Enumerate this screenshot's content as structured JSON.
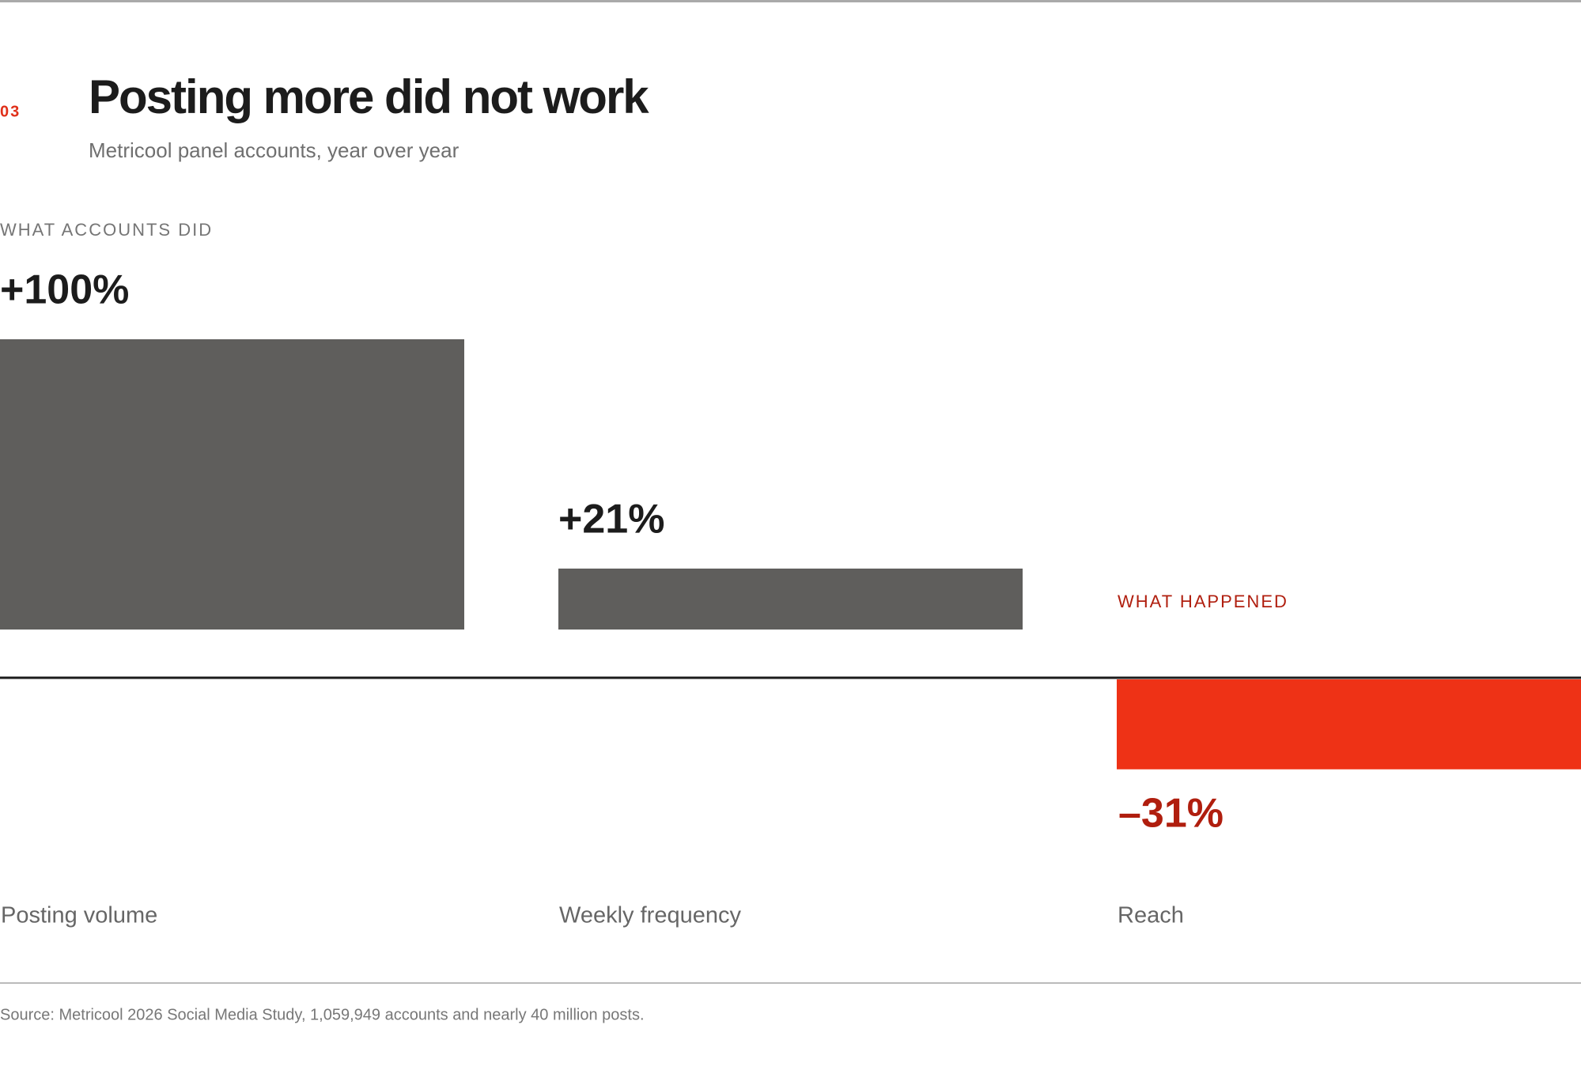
{
  "chart_data": {
    "type": "bar",
    "section": "03",
    "title": "Posting more did not work",
    "subtitle": "Metricool panel accounts, year over year",
    "annotations": [
      "WHAT ACCOUNTS DID",
      "WHAT HAPPENED"
    ],
    "categories": [
      "Posting volume",
      "Weekly frequency",
      "Reach"
    ],
    "values": [
      100,
      21,
      -31
    ],
    "value_labels": [
      "+100%",
      "+21%",
      "–31%"
    ],
    "colors": [
      "#5f5e5c",
      "#5f5e5c",
      "#ee3216"
    ],
    "source": "Source: Metricool 2026 Social Media Study, 1,059,949 accounts and nearly 40 million posts."
  }
}
